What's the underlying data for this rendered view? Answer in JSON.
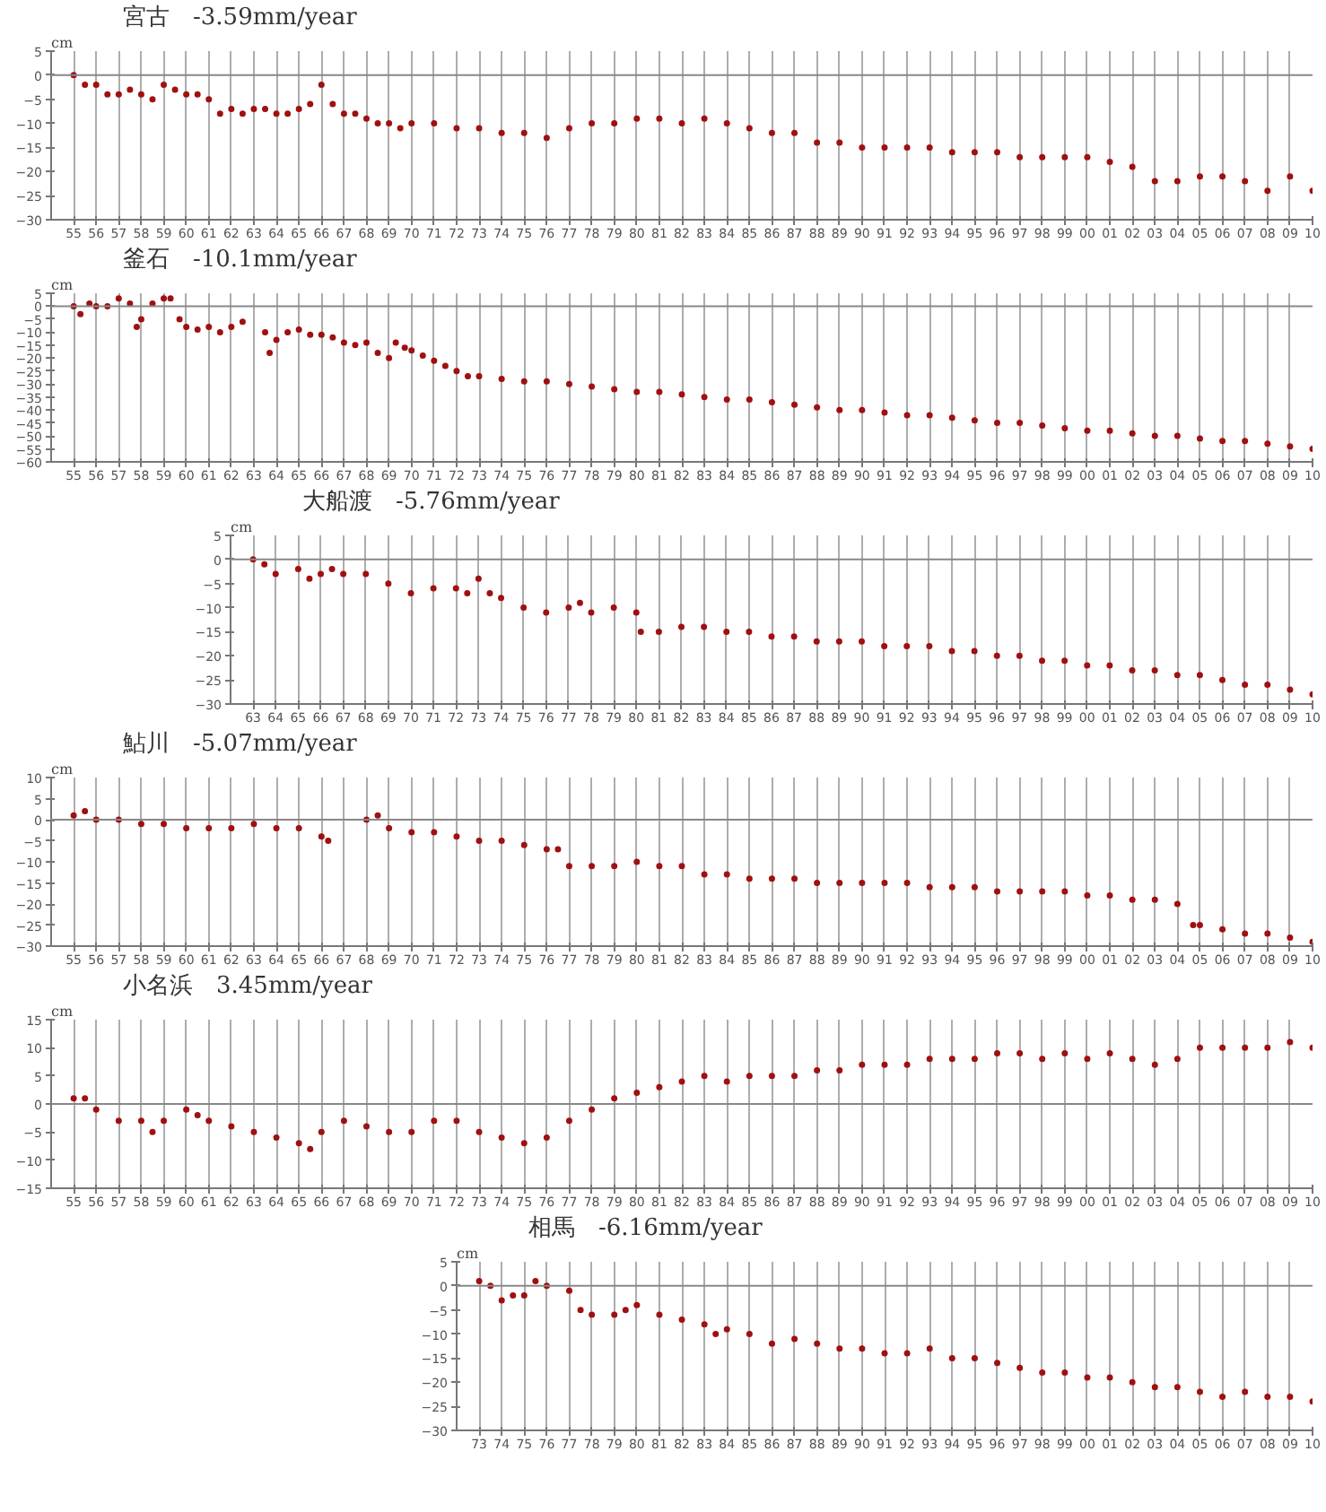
{
  "chart_data": [
    {
      "type": "scatter",
      "title": "宮古　-3.59mm/year",
      "ylabel": "cm",
      "color": "#a01010",
      "marker": "circle",
      "grid": "x",
      "xlim": [
        1954,
        2010
      ],
      "ylim": [
        -30,
        5
      ],
      "yticks": [
        5,
        0,
        -5,
        -10,
        -15,
        -20,
        -25,
        -30
      ],
      "ref_lines": [
        {
          "axis": "y",
          "value": 0
        }
      ],
      "x": [
        1955,
        1955.5,
        1956,
        1956.5,
        1957,
        1957.5,
        1958,
        1958.5,
        1959,
        1959.5,
        1960,
        1960.5,
        1961,
        1961.5,
        1962,
        1962.5,
        1963,
        1963.5,
        1964,
        1964.5,
        1965,
        1965.5,
        1966,
        1966.5,
        1967,
        1967.5,
        1968,
        1968.5,
        1969,
        1969.5,
        1970,
        1971,
        1972,
        1973,
        1974,
        1975,
        1976,
        1977,
        1978,
        1979,
        1980,
        1981,
        1982,
        1983,
        1984,
        1985,
        1986,
        1987,
        1988,
        1989,
        1990,
        1991,
        1992,
        1993,
        1994,
        1995,
        1996,
        1997,
        1998,
        1999,
        2000,
        2001,
        2002,
        2003,
        2004,
        2005,
        2006,
        2007,
        2008,
        2009,
        2010
      ],
      "values": [
        0,
        -2,
        -2,
        -4,
        -4,
        -3,
        -4,
        -5,
        -2,
        -3,
        -4,
        -4,
        -5,
        -8,
        -7,
        -8,
        -7,
        -7,
        -8,
        -8,
        -7,
        -6,
        -2,
        -6,
        -8,
        -8,
        -9,
        -10,
        -10,
        -11,
        -10,
        -10,
        -11,
        -11,
        -12,
        -12,
        -13,
        -11,
        -10,
        -10,
        -9,
        -9,
        -10,
        -9,
        -10,
        -11,
        -12,
        -12,
        -14,
        -14,
        -15,
        -15,
        -15,
        -15,
        -16,
        -16,
        -16,
        -17,
        -17,
        -17,
        -17,
        -18,
        -19,
        -22,
        -22,
        -21,
        -21,
        -22,
        -24,
        -21,
        -24
      ],
      "xticks": [
        {
          "value": 1955,
          "label": "55"
        },
        {
          "value": 1956,
          "label": "56"
        },
        {
          "value": 1957,
          "label": "57"
        },
        {
          "value": 1958,
          "label": "58"
        },
        {
          "value": 1959,
          "label": "59"
        },
        {
          "value": 1960,
          "label": "60"
        },
        {
          "value": 1961,
          "label": "61"
        },
        {
          "value": 1962,
          "label": "62"
        },
        {
          "value": 1963,
          "label": "63"
        },
        {
          "value": 1964,
          "label": "64"
        },
        {
          "value": 1965,
          "label": "65"
        },
        {
          "value": 1966,
          "label": "66"
        },
        {
          "value": 1967,
          "label": "67"
        },
        {
          "value": 1968,
          "label": "68"
        },
        {
          "value": 1969,
          "label": "69"
        },
        {
          "value": 1970,
          "label": "70"
        },
        {
          "value": 1971,
          "label": "71"
        },
        {
          "value": 1972,
          "label": "72"
        },
        {
          "value": 1973,
          "label": "73"
        },
        {
          "value": 1974,
          "label": "74"
        },
        {
          "value": 1975,
          "label": "75"
        },
        {
          "value": 1976,
          "label": "76"
        },
        {
          "value": 1977,
          "label": "77"
        },
        {
          "value": 1978,
          "label": "78"
        },
        {
          "value": 1979,
          "label": "79"
        },
        {
          "value": 1980,
          "label": "80"
        },
        {
          "value": 1981,
          "label": "81"
        },
        {
          "value": 1982,
          "label": "82"
        },
        {
          "value": 1983,
          "label": "83"
        },
        {
          "value": 1984,
          "label": "84"
        },
        {
          "value": 1985,
          "label": "85"
        },
        {
          "value": 1986,
          "label": "86"
        },
        {
          "value": 1987,
          "label": "87"
        },
        {
          "value": 1988,
          "label": "88"
        },
        {
          "value": 1989,
          "label": "89"
        },
        {
          "value": 1990,
          "label": "90"
        },
        {
          "value": 1991,
          "label": "91"
        },
        {
          "value": 1992,
          "label": "92"
        },
        {
          "value": 1993,
          "label": "93"
        },
        {
          "value": 1994,
          "label": "94"
        },
        {
          "value": 1995,
          "label": "95"
        },
        {
          "value": 1996,
          "label": "96"
        },
        {
          "value": 1997,
          "label": "97"
        },
        {
          "value": 1998,
          "label": "98"
        },
        {
          "value": 1999,
          "label": "99"
        },
        {
          "value": 2000,
          "label": "00"
        },
        {
          "value": 2001,
          "label": "01"
        },
        {
          "value": 2002,
          "label": "02"
        },
        {
          "value": 2003,
          "label": "03"
        },
        {
          "value": 2004,
          "label": "04"
        },
        {
          "value": 2005,
          "label": "05"
        },
        {
          "value": 2006,
          "label": "06"
        },
        {
          "value": 2007,
          "label": "07"
        },
        {
          "value": 2008,
          "label": "08"
        },
        {
          "value": 2009,
          "label": "09"
        },
        {
          "value": 2010,
          "label": "10"
        }
      ]
    },
    {
      "type": "scatter",
      "title": "釜石　-10.1mm/year",
      "ylabel": "cm",
      "color": "#a01010",
      "marker": "circle",
      "grid": "x",
      "xlim": [
        1954,
        2010
      ],
      "ylim": [
        -60,
        5
      ],
      "yticks": [
        5,
        0,
        -5,
        -10,
        -15,
        -20,
        -25,
        -30,
        -35,
        -40,
        -45,
        -50,
        -55,
        -60
      ],
      "ref_lines": [
        {
          "axis": "y",
          "value": 0
        }
      ],
      "x": [
        1955,
        1955.3,
        1955.7,
        1956,
        1956.5,
        1957,
        1957.5,
        1957.8,
        1958,
        1958.5,
        1959,
        1959.3,
        1959.7,
        1960,
        1960.5,
        1961,
        1961.5,
        1962,
        1962.5,
        1963.5,
        1963.7,
        1964,
        1964.5,
        1965,
        1965.5,
        1966,
        1966.5,
        1967,
        1967.5,
        1968,
        1968.5,
        1969,
        1969.3,
        1969.7,
        1970,
        1970.5,
        1971,
        1971.5,
        1972,
        1972.5,
        1973,
        1974,
        1975,
        1976,
        1977,
        1978,
        1979,
        1980,
        1981,
        1982,
        1983,
        1984,
        1985,
        1986,
        1987,
        1988,
        1989,
        1990,
        1991,
        1992,
        1993,
        1994,
        1995,
        1996,
        1997,
        1998,
        1999,
        2000,
        2001,
        2002,
        2003,
        2004,
        2005,
        2006,
        2007,
        2008,
        2009,
        2010
      ],
      "values": [
        0,
        -3,
        1,
        0,
        0,
        3,
        1,
        -8,
        -5,
        1,
        3,
        3,
        -5,
        -8,
        -9,
        -8,
        -10,
        -8,
        -6,
        -10,
        -18,
        -13,
        -10,
        -9,
        -11,
        -11,
        -12,
        -14,
        -15,
        -14,
        -18,
        -20,
        -14,
        -16,
        -17,
        -19,
        -21,
        -23,
        -25,
        -27,
        -27,
        -28,
        -29,
        -29,
        -30,
        -31,
        -32,
        -33,
        -33,
        -34,
        -35,
        -36,
        -36,
        -37,
        -38,
        -39,
        -40,
        -40,
        -41,
        -42,
        -42,
        -43,
        -44,
        -45,
        -45,
        -46,
        -47,
        -48,
        -48,
        -49,
        -50,
        -50,
        -51,
        -52,
        -52,
        -53,
        -54,
        -55
      ],
      "xticks": [
        {
          "value": 1955,
          "label": "55"
        },
        {
          "value": 1956,
          "label": "56"
        },
        {
          "value": 1957,
          "label": "57"
        },
        {
          "value": 1958,
          "label": "58"
        },
        {
          "value": 1959,
          "label": "59"
        },
        {
          "value": 1960,
          "label": "60"
        },
        {
          "value": 1961,
          "label": "61"
        },
        {
          "value": 1962,
          "label": "62"
        },
        {
          "value": 1963,
          "label": "63"
        },
        {
          "value": 1964,
          "label": "64"
        },
        {
          "value": 1965,
          "label": "65"
        },
        {
          "value": 1966,
          "label": "66"
        },
        {
          "value": 1967,
          "label": "67"
        },
        {
          "value": 1968,
          "label": "68"
        },
        {
          "value": 1969,
          "label": "69"
        },
        {
          "value": 1970,
          "label": "70"
        },
        {
          "value": 1971,
          "label": "71"
        },
        {
          "value": 1972,
          "label": "72"
        },
        {
          "value": 1973,
          "label": "73"
        },
        {
          "value": 1974,
          "label": "74"
        },
        {
          "value": 1975,
          "label": "75"
        },
        {
          "value": 1976,
          "label": "76"
        },
        {
          "value": 1977,
          "label": "77"
        },
        {
          "value": 1978,
          "label": "78"
        },
        {
          "value": 1979,
          "label": "79"
        },
        {
          "value": 1980,
          "label": "80"
        },
        {
          "value": 1981,
          "label": "81"
        },
        {
          "value": 1982,
          "label": "82"
        },
        {
          "value": 1983,
          "label": "83"
        },
        {
          "value": 1984,
          "label": "84"
        },
        {
          "value": 1985,
          "label": "85"
        },
        {
          "value": 1986,
          "label": "86"
        },
        {
          "value": 1987,
          "label": "87"
        },
        {
          "value": 1988,
          "label": "88"
        },
        {
          "value": 1989,
          "label": "89"
        },
        {
          "value": 1990,
          "label": "90"
        },
        {
          "value": 1991,
          "label": "91"
        },
        {
          "value": 1992,
          "label": "92"
        },
        {
          "value": 1993,
          "label": "93"
        },
        {
          "value": 1994,
          "label": "94"
        },
        {
          "value": 1995,
          "label": "95"
        },
        {
          "value": 1996,
          "label": "96"
        },
        {
          "value": 1997,
          "label": "97"
        },
        {
          "value": 1998,
          "label": "98"
        },
        {
          "value": 1999,
          "label": "99"
        },
        {
          "value": 2000,
          "label": "00"
        },
        {
          "value": 2001,
          "label": "01"
        },
        {
          "value": 2002,
          "label": "02"
        },
        {
          "value": 2003,
          "label": "03"
        },
        {
          "value": 2004,
          "label": "04"
        },
        {
          "value": 2005,
          "label": "05"
        },
        {
          "value": 2006,
          "label": "06"
        },
        {
          "value": 2007,
          "label": "07"
        },
        {
          "value": 2008,
          "label": "08"
        },
        {
          "value": 2009,
          "label": "09"
        },
        {
          "value": 2010,
          "label": "10"
        }
      ]
    },
    {
      "type": "scatter",
      "title": "大船渡　-5.76mm/year",
      "ylabel": "cm",
      "color": "#a01010",
      "marker": "circle",
      "grid": "x",
      "xlim": [
        1962,
        2010
      ],
      "ylim": [
        -30,
        5
      ],
      "yticks": [
        5,
        0,
        -5,
        -10,
        -15,
        -20,
        -25,
        -30
      ],
      "ref_lines": [
        {
          "axis": "y",
          "value": 0
        }
      ],
      "x": [
        1963,
        1963.5,
        1964,
        1965,
        1965.5,
        1966,
        1966.5,
        1967,
        1968,
        1969,
        1970,
        1971,
        1972,
        1972.5,
        1973,
        1973.5,
        1974,
        1975,
        1976,
        1977,
        1977.5,
        1978,
        1979,
        1980,
        1980.2,
        1981,
        1982,
        1983,
        1984,
        1985,
        1986,
        1987,
        1988,
        1989,
        1990,
        1991,
        1992,
        1993,
        1994,
        1995,
        1996,
        1997,
        1998,
        1999,
        2000,
        2001,
        2002,
        2003,
        2004,
        2005,
        2006,
        2007,
        2008,
        2009,
        2010
      ],
      "values": [
        0,
        -1,
        -3,
        -2,
        -4,
        -3,
        -2,
        -3,
        -3,
        -5,
        -7,
        -6,
        -6,
        -7,
        -4,
        -7,
        -8,
        -10,
        -11,
        -10,
        -9,
        -11,
        -10,
        -11,
        -15,
        -15,
        -14,
        -14,
        -15,
        -15,
        -16,
        -16,
        -17,
        -17,
        -17,
        -18,
        -18,
        -18,
        -19,
        -19,
        -20,
        -20,
        -21,
        -21,
        -22,
        -22,
        -23,
        -23,
        -24,
        -24,
        -25,
        -26,
        -26,
        -27,
        -28
      ],
      "xticks": [
        {
          "value": 1963,
          "label": "63"
        },
        {
          "value": 1964,
          "label": "64"
        },
        {
          "value": 1965,
          "label": "65"
        },
        {
          "value": 1966,
          "label": "66"
        },
        {
          "value": 1967,
          "label": "67"
        },
        {
          "value": 1968,
          "label": "68"
        },
        {
          "value": 1969,
          "label": "69"
        },
        {
          "value": 1970,
          "label": "70"
        },
        {
          "value": 1971,
          "label": "71"
        },
        {
          "value": 1972,
          "label": "72"
        },
        {
          "value": 1973,
          "label": "73"
        },
        {
          "value": 1974,
          "label": "74"
        },
        {
          "value": 1975,
          "label": "75"
        },
        {
          "value": 1976,
          "label": "76"
        },
        {
          "value": 1977,
          "label": "77"
        },
        {
          "value": 1978,
          "label": "78"
        },
        {
          "value": 1979,
          "label": "79"
        },
        {
          "value": 1980,
          "label": "80"
        },
        {
          "value": 1981,
          "label": "81"
        },
        {
          "value": 1982,
          "label": "82"
        },
        {
          "value": 1983,
          "label": "83"
        },
        {
          "value": 1984,
          "label": "84"
        },
        {
          "value": 1985,
          "label": "85"
        },
        {
          "value": 1986,
          "label": "86"
        },
        {
          "value": 1987,
          "label": "87"
        },
        {
          "value": 1988,
          "label": "88"
        },
        {
          "value": 1989,
          "label": "89"
        },
        {
          "value": 1990,
          "label": "90"
        },
        {
          "value": 1991,
          "label": "91"
        },
        {
          "value": 1992,
          "label": "92"
        },
        {
          "value": 1993,
          "label": "93"
        },
        {
          "value": 1994,
          "label": "94"
        },
        {
          "value": 1995,
          "label": "95"
        },
        {
          "value": 1996,
          "label": "96"
        },
        {
          "value": 1997,
          "label": "97"
        },
        {
          "value": 1998,
          "label": "98"
        },
        {
          "value": 1999,
          "label": "99"
        },
        {
          "value": 2000,
          "label": "00"
        },
        {
          "value": 2001,
          "label": "01"
        },
        {
          "value": 2002,
          "label": "02"
        },
        {
          "value": 2003,
          "label": "03"
        },
        {
          "value": 2004,
          "label": "04"
        },
        {
          "value": 2005,
          "label": "05"
        },
        {
          "value": 2006,
          "label": "06"
        },
        {
          "value": 2007,
          "label": "07"
        },
        {
          "value": 2008,
          "label": "08"
        },
        {
          "value": 2009,
          "label": "09"
        },
        {
          "value": 2010,
          "label": "10"
        }
      ]
    },
    {
      "type": "scatter",
      "title": "鮎川　-5.07mm/year",
      "ylabel": "cm",
      "color": "#a01010",
      "marker": "circle",
      "grid": "x",
      "xlim": [
        1954,
        2010
      ],
      "ylim": [
        -30,
        10
      ],
      "yticks": [
        10,
        5,
        0,
        -5,
        -10,
        -15,
        -20,
        -25,
        -30
      ],
      "ref_lines": [
        {
          "axis": "y",
          "value": 0
        }
      ],
      "x": [
        1955,
        1955.5,
        1956,
        1957,
        1958,
        1959,
        1960,
        1961,
        1962,
        1963,
        1964,
        1965,
        1966,
        1966.3,
        1968,
        1968.5,
        1969,
        1970,
        1971,
        1972,
        1973,
        1974,
        1975,
        1976,
        1976.5,
        1977,
        1978,
        1979,
        1980,
        1981,
        1982,
        1983,
        1984,
        1985,
        1986,
        1987,
        1988,
        1989,
        1990,
        1991,
        1992,
        1993,
        1994,
        1995,
        1996,
        1997,
        1998,
        1999,
        2000,
        2001,
        2002,
        2003,
        2004,
        2004.7,
        2005,
        2006,
        2007,
        2008,
        2009,
        2010
      ],
      "values": [
        1,
        2,
        0,
        0,
        -1,
        -1,
        -2,
        -2,
        -2,
        -1,
        -2,
        -2,
        -4,
        -5,
        0,
        1,
        -2,
        -3,
        -3,
        -4,
        -5,
        -5,
        -6,
        -7,
        -7,
        -11,
        -11,
        -11,
        -10,
        -11,
        -11,
        -13,
        -13,
        -14,
        -14,
        -14,
        -15,
        -15,
        -15,
        -15,
        -15,
        -16,
        -16,
        -16,
        -17,
        -17,
        -17,
        -17,
        -18,
        -18,
        -19,
        -19,
        -20,
        -25,
        -25,
        -26,
        -27,
        -27,
        -28,
        -29
      ],
      "xticks": [
        {
          "value": 1955,
          "label": "55"
        },
        {
          "value": 1956,
          "label": "56"
        },
        {
          "value": 1957,
          "label": "57"
        },
        {
          "value": 1958,
          "label": "58"
        },
        {
          "value": 1959,
          "label": "59"
        },
        {
          "value": 1960,
          "label": "60"
        },
        {
          "value": 1961,
          "label": "61"
        },
        {
          "value": 1962,
          "label": "62"
        },
        {
          "value": 1963,
          "label": "63"
        },
        {
          "value": 1964,
          "label": "64"
        },
        {
          "value": 1965,
          "label": "65"
        },
        {
          "value": 1966,
          "label": "66"
        },
        {
          "value": 1967,
          "label": "67"
        },
        {
          "value": 1968,
          "label": "68"
        },
        {
          "value": 1969,
          "label": "69"
        },
        {
          "value": 1970,
          "label": "70"
        },
        {
          "value": 1971,
          "label": "71"
        },
        {
          "value": 1972,
          "label": "72"
        },
        {
          "value": 1973,
          "label": "73"
        },
        {
          "value": 1974,
          "label": "74"
        },
        {
          "value": 1975,
          "label": "75"
        },
        {
          "value": 1976,
          "label": "76"
        },
        {
          "value": 1977,
          "label": "77"
        },
        {
          "value": 1978,
          "label": "78"
        },
        {
          "value": 1979,
          "label": "79"
        },
        {
          "value": 1980,
          "label": "80"
        },
        {
          "value": 1981,
          "label": "81"
        },
        {
          "value": 1982,
          "label": "82"
        },
        {
          "value": 1983,
          "label": "83"
        },
        {
          "value": 1984,
          "label": "84"
        },
        {
          "value": 1985,
          "label": "85"
        },
        {
          "value": 1986,
          "label": "86"
        },
        {
          "value": 1987,
          "label": "87"
        },
        {
          "value": 1988,
          "label": "88"
        },
        {
          "value": 1989,
          "label": "89"
        },
        {
          "value": 1990,
          "label": "90"
        },
        {
          "value": 1991,
          "label": "91"
        },
        {
          "value": 1992,
          "label": "92"
        },
        {
          "value": 1993,
          "label": "93"
        },
        {
          "value": 1994,
          "label": "94"
        },
        {
          "value": 1995,
          "label": "95"
        },
        {
          "value": 1996,
          "label": "96"
        },
        {
          "value": 1997,
          "label": "97"
        },
        {
          "value": 1998,
          "label": "98"
        },
        {
          "value": 1999,
          "label": "99"
        },
        {
          "value": 2000,
          "label": "00"
        },
        {
          "value": 2001,
          "label": "01"
        },
        {
          "value": 2002,
          "label": "02"
        },
        {
          "value": 2003,
          "label": "03"
        },
        {
          "value": 2004,
          "label": "04"
        },
        {
          "value": 2005,
          "label": "05"
        },
        {
          "value": 2006,
          "label": "06"
        },
        {
          "value": 2007,
          "label": "07"
        },
        {
          "value": 2008,
          "label": "08"
        },
        {
          "value": 2009,
          "label": "09"
        },
        {
          "value": 2010,
          "label": "10"
        }
      ]
    },
    {
      "type": "scatter",
      "title": "小名浜　3.45mm/year",
      "ylabel": "cm",
      "color": "#a01010",
      "marker": "circle",
      "grid": "x",
      "xlim": [
        1954,
        2010
      ],
      "ylim": [
        -15,
        15
      ],
      "yticks": [
        15,
        10,
        5,
        0,
        -5,
        -10,
        -15
      ],
      "ref_lines": [
        {
          "axis": "y",
          "value": 0
        }
      ],
      "x": [
        1955,
        1955.5,
        1956,
        1957,
        1958,
        1958.5,
        1959,
        1960,
        1960.5,
        1961,
        1962,
        1963,
        1964,
        1965,
        1965.5,
        1966,
        1967,
        1968,
        1969,
        1970,
        1971,
        1972,
        1973,
        1974,
        1975,
        1976,
        1977,
        1978,
        1979,
        1980,
        1981,
        1982,
        1983,
        1984,
        1985,
        1986,
        1987,
        1988,
        1989,
        1990,
        1991,
        1992,
        1993,
        1994,
        1995,
        1996,
        1997,
        1998,
        1999,
        2000,
        2001,
        2002,
        2003,
        2004,
        2005,
        2006,
        2007,
        2008,
        2009,
        2010
      ],
      "values": [
        1,
        1,
        -1,
        -3,
        -3,
        -5,
        -3,
        -1,
        -2,
        -3,
        -4,
        -5,
        -6,
        -7,
        -8,
        -5,
        -3,
        -4,
        -5,
        -5,
        -3,
        -3,
        -5,
        -6,
        -7,
        -6,
        -3,
        -1,
        1,
        2,
        3,
        4,
        5,
        4,
        5,
        5,
        5,
        6,
        6,
        7,
        7,
        7,
        8,
        8,
        8,
        9,
        9,
        8,
        9,
        8,
        9,
        8,
        7,
        8,
        10,
        10,
        10,
        10,
        11,
        10
      ],
      "xticks": [
        {
          "value": 1955,
          "label": "55"
        },
        {
          "value": 1956,
          "label": "56"
        },
        {
          "value": 1957,
          "label": "57"
        },
        {
          "value": 1958,
          "label": "58"
        },
        {
          "value": 1959,
          "label": "59"
        },
        {
          "value": 1960,
          "label": "60"
        },
        {
          "value": 1961,
          "label": "61"
        },
        {
          "value": 1962,
          "label": "62"
        },
        {
          "value": 1963,
          "label": "63"
        },
        {
          "value": 1964,
          "label": "64"
        },
        {
          "value": 1965,
          "label": "65"
        },
        {
          "value": 1966,
          "label": "66"
        },
        {
          "value": 1967,
          "label": "67"
        },
        {
          "value": 1968,
          "label": "68"
        },
        {
          "value": 1969,
          "label": "69"
        },
        {
          "value": 1970,
          "label": "70"
        },
        {
          "value": 1971,
          "label": "71"
        },
        {
          "value": 1972,
          "label": "72"
        },
        {
          "value": 1973,
          "label": "73"
        },
        {
          "value": 1974,
          "label": "74"
        },
        {
          "value": 1975,
          "label": "75"
        },
        {
          "value": 1976,
          "label": "76"
        },
        {
          "value": 1977,
          "label": "77"
        },
        {
          "value": 1978,
          "label": "78"
        },
        {
          "value": 1979,
          "label": "79"
        },
        {
          "value": 1980,
          "label": "80"
        },
        {
          "value": 1981,
          "label": "81"
        },
        {
          "value": 1982,
          "label": "82"
        },
        {
          "value": 1983,
          "label": "83"
        },
        {
          "value": 1984,
          "label": "84"
        },
        {
          "value": 1985,
          "label": "85"
        },
        {
          "value": 1986,
          "label": "86"
        },
        {
          "value": 1987,
          "label": "87"
        },
        {
          "value": 1988,
          "label": "88"
        },
        {
          "value": 1989,
          "label": "89"
        },
        {
          "value": 1990,
          "label": "90"
        },
        {
          "value": 1991,
          "label": "91"
        },
        {
          "value": 1992,
          "label": "92"
        },
        {
          "value": 1993,
          "label": "93"
        },
        {
          "value": 1994,
          "label": "94"
        },
        {
          "value": 1995,
          "label": "95"
        },
        {
          "value": 1996,
          "label": "96"
        },
        {
          "value": 1997,
          "label": "97"
        },
        {
          "value": 1998,
          "label": "98"
        },
        {
          "value": 1999,
          "label": "99"
        },
        {
          "value": 2000,
          "label": "00"
        },
        {
          "value": 2001,
          "label": "01"
        },
        {
          "value": 2002,
          "label": "02"
        },
        {
          "value": 2003,
          "label": "03"
        },
        {
          "value": 2004,
          "label": "04"
        },
        {
          "value": 2005,
          "label": "05"
        },
        {
          "value": 2006,
          "label": "06"
        },
        {
          "value": 2007,
          "label": "07"
        },
        {
          "value": 2008,
          "label": "08"
        },
        {
          "value": 2009,
          "label": "09"
        },
        {
          "value": 2010,
          "label": "10"
        }
      ]
    },
    {
      "type": "scatter",
      "title": "相馬　-6.16mm/year",
      "ylabel": "cm",
      "color": "#a01010",
      "marker": "circle",
      "grid": "x",
      "xlim": [
        1972,
        2010
      ],
      "ylim": [
        -30,
        5
      ],
      "yticks": [
        5,
        0,
        -5,
        -10,
        -15,
        -20,
        -25,
        -30
      ],
      "ref_lines": [
        {
          "axis": "y",
          "value": 0
        }
      ],
      "x": [
        1973,
        1973.5,
        1974,
        1974.5,
        1975,
        1975.5,
        1976,
        1977,
        1977.5,
        1978,
        1979,
        1979.5,
        1980,
        1981,
        1982,
        1983,
        1983.5,
        1984,
        1985,
        1986,
        1987,
        1988,
        1989,
        1990,
        1991,
        1992,
        1993,
        1994,
        1995,
        1996,
        1997,
        1998,
        1999,
        2000,
        2001,
        2002,
        2003,
        2004,
        2005,
        2006,
        2007,
        2008,
        2009,
        2010
      ],
      "values": [
        1,
        0,
        -3,
        -2,
        -2,
        1,
        0,
        -1,
        -5,
        -6,
        -6,
        -5,
        -4,
        -6,
        -7,
        -8,
        -10,
        -9,
        -10,
        -12,
        -11,
        -12,
        -13,
        -13,
        -14,
        -14,
        -13,
        -15,
        -15,
        -16,
        -17,
        -18,
        -18,
        -19,
        -19,
        -20,
        -21,
        -21,
        -22,
        -23,
        -22,
        -23,
        -23,
        -24
      ],
      "xticks": [
        {
          "value": 1973,
          "label": "73"
        },
        {
          "value": 1974,
          "label": "74"
        },
        {
          "value": 1975,
          "label": "75"
        },
        {
          "value": 1976,
          "label": "76"
        },
        {
          "value": 1977,
          "label": "77"
        },
        {
          "value": 1978,
          "label": "78"
        },
        {
          "value": 1979,
          "label": "79"
        },
        {
          "value": 1980,
          "label": "80"
        },
        {
          "value": 1981,
          "label": "81"
        },
        {
          "value": 1982,
          "label": "82"
        },
        {
          "value": 1983,
          "label": "83"
        },
        {
          "value": 1984,
          "label": "84"
        },
        {
          "value": 1985,
          "label": "85"
        },
        {
          "value": 1986,
          "label": "86"
        },
        {
          "value": 1987,
          "label": "87"
        },
        {
          "value": 1988,
          "label": "88"
        },
        {
          "value": 1989,
          "label": "89"
        },
        {
          "value": 1990,
          "label": "90"
        },
        {
          "value": 1991,
          "label": "91"
        },
        {
          "value": 1992,
          "label": "92"
        },
        {
          "value": 1993,
          "label": "93"
        },
        {
          "value": 1994,
          "label": "94"
        },
        {
          "value": 1995,
          "label": "95"
        },
        {
          "value": 1996,
          "label": "96"
        },
        {
          "value": 1997,
          "label": "97"
        },
        {
          "value": 1998,
          "label": "98"
        },
        {
          "value": 1999,
          "label": "99"
        },
        {
          "value": 2000,
          "label": "00"
        },
        {
          "value": 2001,
          "label": "01"
        },
        {
          "value": 2002,
          "label": "02"
        },
        {
          "value": 2003,
          "label": "03"
        },
        {
          "value": 2004,
          "label": "04"
        },
        {
          "value": 2005,
          "label": "05"
        },
        {
          "value": 2006,
          "label": "06"
        },
        {
          "value": 2007,
          "label": "07"
        },
        {
          "value": 2008,
          "label": "08"
        },
        {
          "value": 2009,
          "label": "09"
        },
        {
          "value": 2010,
          "label": "10"
        }
      ]
    }
  ]
}
